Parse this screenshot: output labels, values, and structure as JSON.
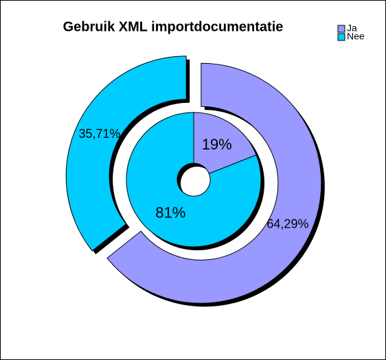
{
  "chart_data": {
    "type": "donut",
    "title": "Gebruik XML importdocumentatie",
    "categories": [
      "Ja",
      "Nee"
    ],
    "colors": [
      "#9999ff",
      "#00ccff"
    ],
    "legend": "top-right",
    "rings": [
      {
        "values": [
          19,
          81
        ],
        "value_labels": [
          "19%",
          "81%"
        ]
      },
      {
        "values": [
          64.29,
          35.71
        ],
        "value_labels": [
          "64,29%",
          "35,71%"
        ]
      }
    ]
  }
}
